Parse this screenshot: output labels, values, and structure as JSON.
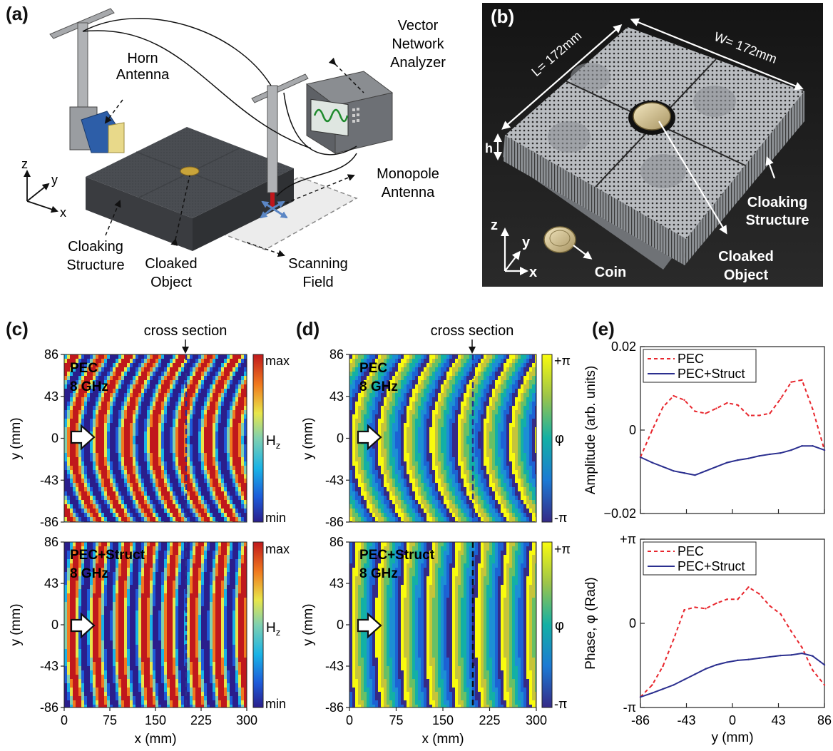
{
  "panels": {
    "a": {
      "label": "(a)",
      "horn_antenna": [
        "Horn",
        "Antenna"
      ],
      "vna": [
        "Vector",
        "Network",
        "Analyzer"
      ],
      "monopole": [
        "Monopole",
        "Antenna"
      ],
      "cloaking_structure": [
        "Cloaking",
        "Structure"
      ],
      "cloaked_object": [
        "Cloaked",
        "Object"
      ],
      "scanning_field": [
        "Scanning",
        "Field"
      ],
      "axes": {
        "z": "z",
        "y": "y",
        "x": "x"
      }
    },
    "b": {
      "label": "(b)",
      "L": "L= 172mm",
      "W": "W= 172mm",
      "h": "h",
      "cloaking_structure": [
        "Cloaking",
        "Structure"
      ],
      "cloaked_object": [
        "Cloaked",
        "Object"
      ],
      "coin": "Coin",
      "axes": {
        "z": "z",
        "y": "y",
        "x": "x"
      }
    },
    "c": {
      "label": "(c)",
      "cross_section": "cross section",
      "top": {
        "title1": "PEC",
        "title2": "8 GHz"
      },
      "bottom": {
        "title1": "PEC+Struct",
        "title2": "8 GHz"
      },
      "colorbar": {
        "max": "max",
        "min": "min",
        "label": "H",
        "sub": "z"
      },
      "y_ticks": [
        "86",
        "43",
        "0",
        "-43",
        "-86"
      ],
      "x_ticks": [
        "0",
        "75",
        "150",
        "225",
        "300"
      ],
      "ylabel": "y (mm)",
      "xlabel": "x (mm)"
    },
    "d": {
      "label": "(d)",
      "cross_section": "cross section",
      "top": {
        "title1": "PEC",
        "title2": "8 GHz"
      },
      "bottom": {
        "title1": "PEC+Struct",
        "title2": "8 GHz"
      },
      "colorbar": {
        "max": "+π",
        "min": "-π",
        "label": "φ"
      },
      "y_ticks": [
        "86",
        "43",
        "0",
        "-43",
        "-86"
      ],
      "x_ticks": [
        "0",
        "75",
        "150",
        "225",
        "300"
      ],
      "ylabel": "y (mm)",
      "xlabel": "x (mm)"
    },
    "e": {
      "label": "(e)"
    }
  },
  "chart_data": [
    {
      "type": "line",
      "ylabel": "Amplitude (arb. units)",
      "y_ticks": [
        "0.02",
        "0",
        "−0.02"
      ],
      "ylim": [
        -0.02,
        0.02
      ],
      "xlim": [
        -86,
        86
      ],
      "x": [
        -86,
        -75,
        -65,
        -55,
        -45,
        -35,
        -25,
        -15,
        -5,
        5,
        15,
        25,
        35,
        45,
        55,
        65,
        75,
        86
      ],
      "series": [
        {
          "name": "PEC",
          "color": "#e8262d",
          "style": "dashed",
          "values": [
            -0.0065,
            0.0,
            0.0055,
            0.0082,
            0.0072,
            0.0045,
            0.004,
            0.0052,
            0.0065,
            0.006,
            0.0035,
            0.0035,
            0.004,
            0.0075,
            0.0115,
            0.012,
            0.005,
            -0.0048
          ]
        },
        {
          "name": "PEC+Struct",
          "color": "#2b2f8f",
          "style": "solid",
          "values": [
            -0.0065,
            -0.0078,
            -0.0088,
            -0.0098,
            -0.0103,
            -0.0108,
            -0.0098,
            -0.0088,
            -0.0078,
            -0.0072,
            -0.0068,
            -0.0062,
            -0.0058,
            -0.0055,
            -0.0048,
            -0.0038,
            -0.0038,
            -0.0048
          ]
        }
      ]
    },
    {
      "type": "line",
      "ylabel": "Phase, φ (Rad)",
      "xlabel": "y (mm)",
      "y_ticks": [
        "+π",
        "0",
        "-π"
      ],
      "x_ticks": [
        "-86",
        "-43",
        "0",
        "43",
        "86"
      ],
      "ylim": [
        -3.1416,
        3.1416
      ],
      "xlim": [
        -86,
        86
      ],
      "x": [
        -86,
        -75,
        -65,
        -55,
        -45,
        -35,
        -25,
        -15,
        -5,
        5,
        15,
        25,
        35,
        45,
        55,
        65,
        75,
        86
      ],
      "series": [
        {
          "name": "PEC",
          "color": "#e8262d",
          "style": "dashed",
          "values": [
            -2.75,
            -2.3,
            -1.6,
            -0.6,
            0.5,
            0.6,
            0.55,
            0.75,
            0.9,
            0.9,
            1.35,
            1.1,
            0.65,
            0.35,
            -0.3,
            -0.9,
            -1.75,
            -2.3
          ]
        },
        {
          "name": "PEC+Struct",
          "color": "#2b2f8f",
          "style": "solid",
          "values": [
            -2.75,
            -2.6,
            -2.45,
            -2.3,
            -2.1,
            -1.9,
            -1.7,
            -1.55,
            -1.45,
            -1.38,
            -1.35,
            -1.3,
            -1.25,
            -1.2,
            -1.18,
            -1.12,
            -1.22,
            -1.55
          ]
        }
      ]
    }
  ]
}
